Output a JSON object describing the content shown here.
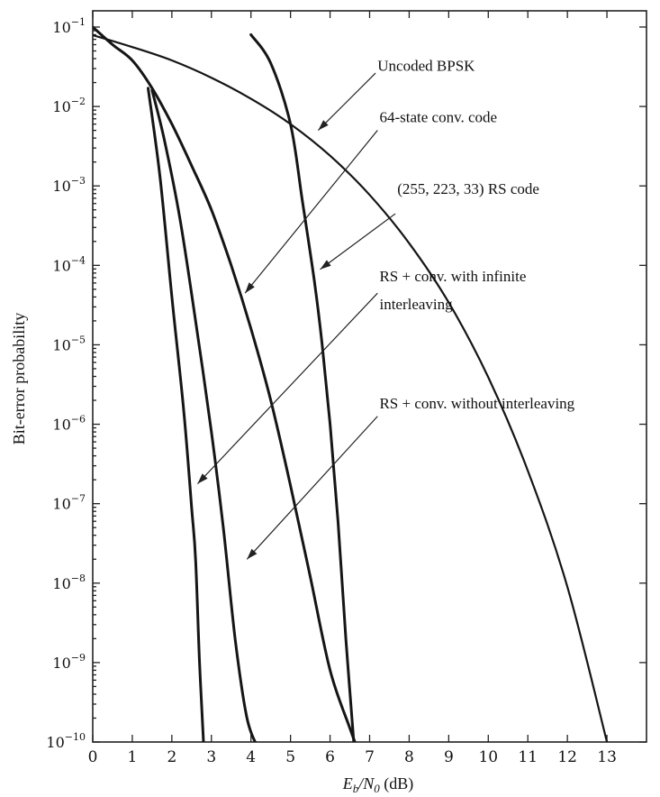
{
  "chart_data": {
    "type": "line",
    "title": "",
    "xlabel": "E_b/N_0 (dB)",
    "ylabel": "Bit-error probability",
    "x_scale": "linear",
    "y_scale": "log",
    "xlim": [
      0,
      14
    ],
    "ylim": [
      1e-10,
      0.16
    ],
    "grid": false,
    "legend": "none (curves labeled by arrow annotations)",
    "x_ticks": [
      "0",
      "1",
      "2",
      "3",
      "4",
      "5",
      "6",
      "7",
      "8",
      "9",
      "10",
      "11",
      "12",
      "13"
    ],
    "y_ticks": [
      {
        "base": "10",
        "exp": "−1",
        "value": 0.1
      },
      {
        "base": "10",
        "exp": "−2",
        "value": 0.01
      },
      {
        "base": "10",
        "exp": "−3",
        "value": 0.001
      },
      {
        "base": "10",
        "exp": "−4",
        "value": 0.0001
      },
      {
        "base": "10",
        "exp": "−5",
        "value": 1e-05
      },
      {
        "base": "10",
        "exp": "−6",
        "value": 1e-06
      },
      {
        "base": "10",
        "exp": "−7",
        "value": 1e-07
      },
      {
        "base": "10",
        "exp": "−8",
        "value": 1e-08
      },
      {
        "base": "10",
        "exp": "−9",
        "value": 1e-09
      },
      {
        "base": "10",
        "exp": "−10",
        "value": 1e-10
      }
    ],
    "series": [
      {
        "name": "Uncoded BPSK",
        "x": [
          0,
          1,
          2,
          3,
          4,
          5,
          6,
          7,
          8,
          9,
          10,
          11,
          12,
          13
        ],
        "y": [
          0.079,
          0.056,
          0.038,
          0.023,
          0.0125,
          0.006,
          0.0024,
          0.00077,
          0.00019,
          3.4e-05,
          3.9e-06,
          2.6e-07,
          9e-09,
          1e-10
        ],
        "label_x": 5.7,
        "label_log_y": -2.3
      },
      {
        "name": "64-state conv. code",
        "x": [
          0,
          0.5,
          1,
          1.5,
          2,
          2.5,
          3,
          3.5,
          4,
          4.5,
          5,
          5.5,
          6,
          6.5,
          6.7
        ],
        "y": [
          0.1,
          0.06,
          0.038,
          0.017,
          0.006,
          0.0018,
          0.0005,
          0.0001,
          1.6e-05,
          2e-06,
          1.7e-07,
          1.2e-08,
          8e-10,
          1.5e-10,
          8e-11
        ],
        "label_x": 3.85,
        "label_log_y": -4.35
      },
      {
        "name": "(255, 223, 33) RS code",
        "x": [
          4,
          4.5,
          5,
          5.3,
          5.6,
          5.8,
          6.0,
          6.2,
          6.4,
          6.6
        ],
        "y": [
          0.08,
          0.035,
          0.006,
          0.00065,
          6.5e-05,
          1e-05,
          1e-06,
          6e-08,
          2e-09,
          1e-10
        ],
        "label_x": 5.75,
        "label_log_y": -4.05
      },
      {
        "name": "RS + conv. with infinite interleaving",
        "x": [
          1.4,
          1.7,
          2.0,
          2.3,
          2.5,
          2.6,
          2.7,
          2.8
        ],
        "y": [
          0.017,
          0.0013,
          4e-05,
          1.5e-06,
          9e-08,
          2e-08,
          1e-09,
          1e-10
        ],
        "label_x": 2.65,
        "label_log_y": -6.75
      },
      {
        "name": "RS + conv. without interleaving",
        "x": [
          1.5,
          1.8,
          2.2,
          2.6,
          3.0,
          3.3,
          3.6,
          3.9,
          4.2
        ],
        "y": [
          0.016,
          0.004,
          0.0004,
          2e-05,
          8e-07,
          5e-08,
          2e-09,
          2e-10,
          8e-11
        ],
        "label_x": 3.9,
        "label_log_y": -7.7
      }
    ],
    "annotations": [
      {
        "text": "Uncoded BPSK",
        "log_y": -1.55,
        "x": 7.2,
        "arrow_from": [
          7.15,
          -1.58
        ],
        "arrow_to": [
          5.7,
          -2.3
        ]
      },
      {
        "text": "64-state conv. code",
        "log_y": -2.2,
        "x": 7.25,
        "arrow_from": [
          7.2,
          -2.3
        ],
        "arrow_to": [
          3.85,
          -4.35
        ]
      },
      {
        "text": "(255, 223, 33) RS code",
        "log_y": -3.1,
        "x": 7.7,
        "arrow_from": [
          7.65,
          -3.35
        ],
        "arrow_to": [
          5.75,
          -4.05
        ]
      },
      {
        "text": "RS + conv. with infinite",
        "log_y": -4.2,
        "x": 7.25,
        "arrow_from": [
          7.2,
          -4.35
        ],
        "arrow_to": [
          2.65,
          -6.75
        ]
      },
      {
        "text": "interleaving",
        "log_y": -4.55,
        "x": 7.25
      },
      {
        "text": "RS + conv. without interleaving",
        "log_y": -5.8,
        "x": 7.25,
        "arrow_from": [
          7.2,
          -5.9
        ],
        "arrow_to": [
          3.9,
          -7.7
        ]
      }
    ]
  }
}
